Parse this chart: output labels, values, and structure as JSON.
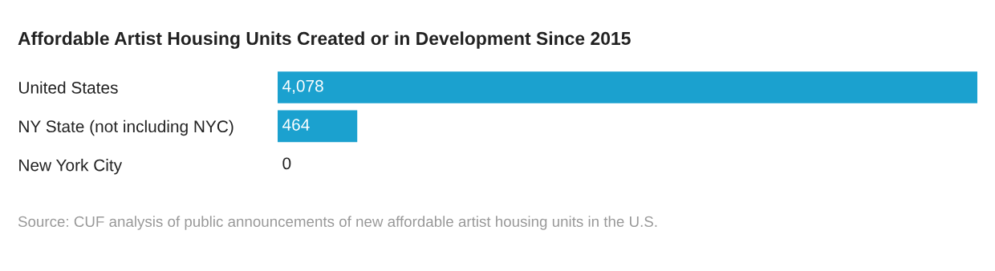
{
  "chart_data": {
    "type": "bar",
    "orientation": "horizontal",
    "title": "Affordable Artist Housing Units Created or in Development Since 2015",
    "categories": [
      "United States",
      "NY State (not including NYC)",
      "New York City"
    ],
    "values": [
      4078,
      464,
      0
    ],
    "color": "#1ba1cf",
    "xlim": [
      0,
      4078
    ],
    "value_labels": [
      "4,078",
      "464",
      "0"
    ],
    "grid": false,
    "annotations": [
      "Source: CUF analysis of public announcements of new affordable artist housing units in the U.S."
    ]
  }
}
